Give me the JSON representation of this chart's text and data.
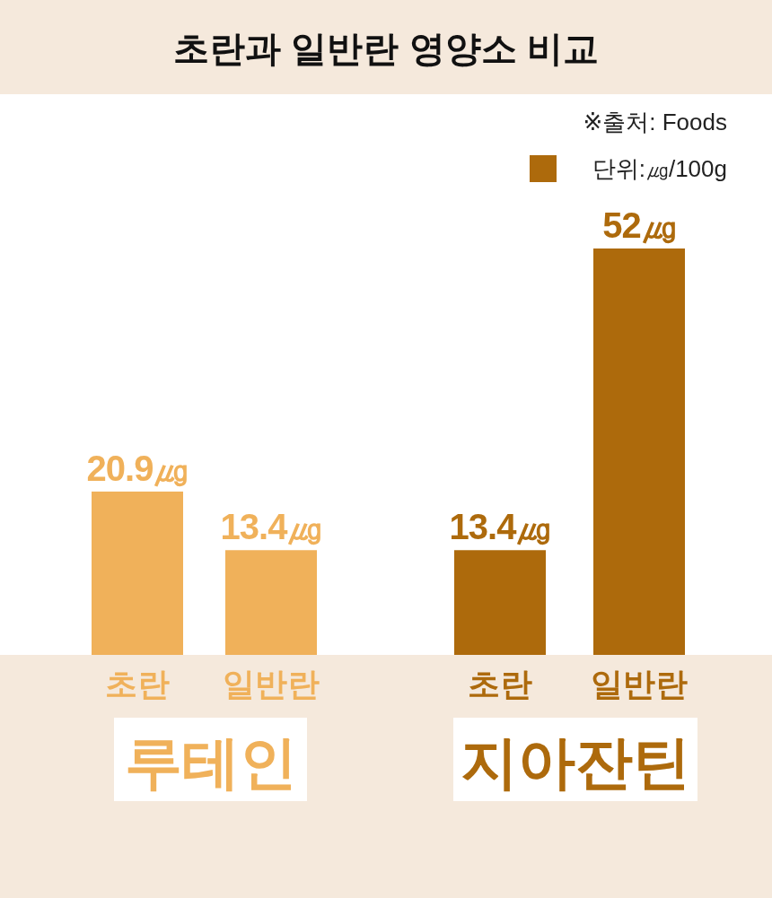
{
  "chart_data": {
    "type": "bar",
    "title": "초란과 일반란 영양소 비교",
    "categories": [
      "초란",
      "일반란",
      "초란",
      "일반란"
    ],
    "values": [
      20.9,
      13.4,
      13.4,
      52
    ],
    "value_labels": [
      "20.9㎍",
      "13.4㎍",
      "13.4㎍",
      "52㎍"
    ],
    "colors": [
      "#f0b15a",
      "#f0b15a",
      "#ad6a0c",
      "#ad6a0c"
    ],
    "annotations": [
      "※출처: Foods",
      "단위:㎍/100g",
      "루테인",
      "지아잔틴"
    ]
  }
}
